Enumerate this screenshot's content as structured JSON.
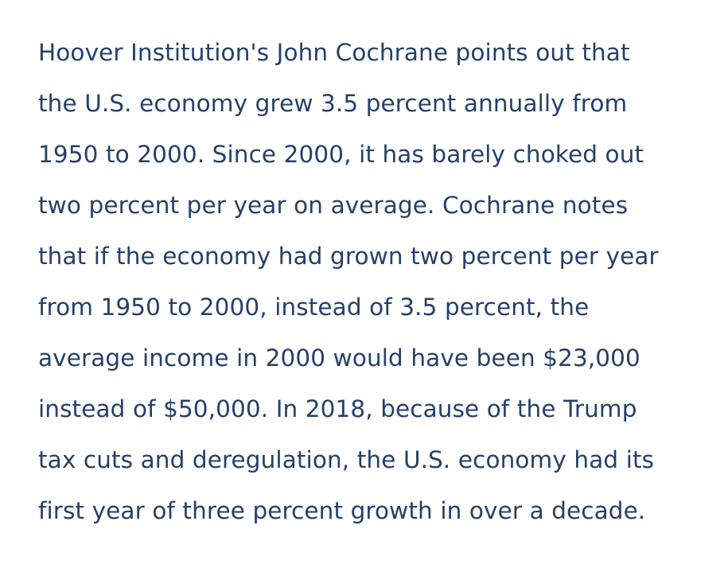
{
  "document": {
    "lines": [
      "Hoover Institution's John Cochrane points out that",
      "the U.S. economy grew 3.5 percent annually from",
      "1950 to 2000. Since 2000, it has barely choked out",
      "two percent per year on average. Cochrane notes",
      "that if the economy had grown two percent per year",
      "from 1950 to 2000, instead of 3.5 percent, the",
      "average income in 2000 would have been $23,000",
      "instead of $50,000. In 2018, because of the Trump",
      "tax cuts and deregulation, the U.S. economy had its",
      "first year of three percent growth in over a decade."
    ]
  },
  "colors": {
    "text": "#24406b",
    "background": "#ffffff"
  }
}
